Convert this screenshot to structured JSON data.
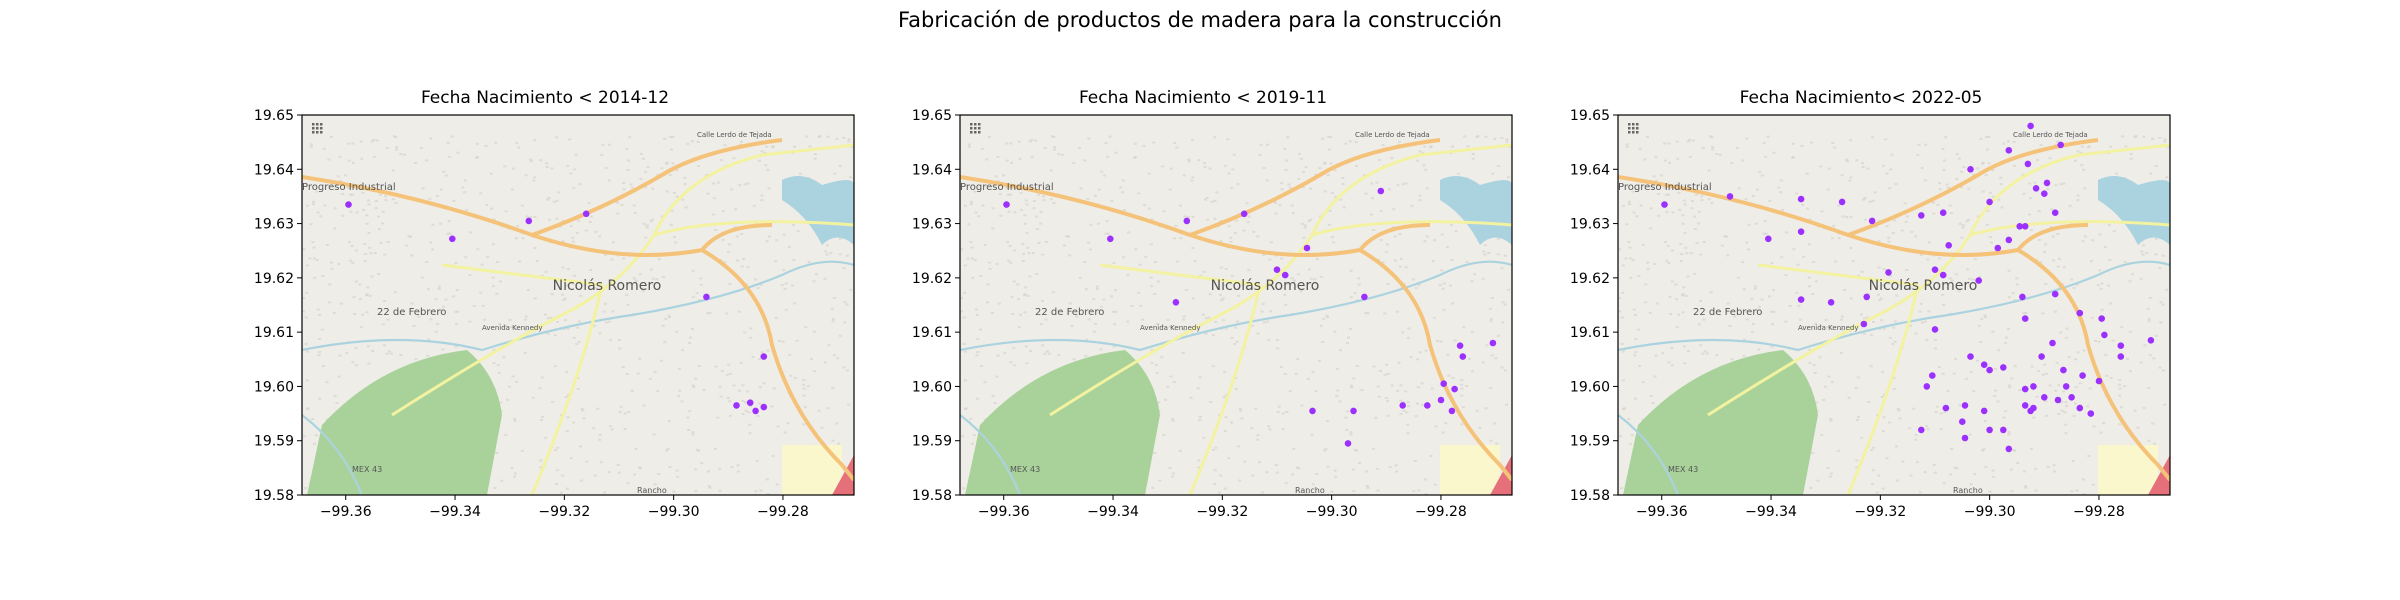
{
  "title": "Fabricación de productos de madera para la construcción",
  "map_labels": {
    "town": "Nicolás Romero",
    "progreso": "Progreso Industrial",
    "febrero": "22 de Febrero",
    "avenida": "Avenida Kennedy",
    "calle": "Calle Lerdo de Tejada",
    "mex": "MEX 43",
    "rancho": "Rancho"
  },
  "colors": {
    "points": "#9b30ff",
    "park": "#a9d29b",
    "water": "#aad3df",
    "road_major": "#f5c27a",
    "road_secondary": "#f2f2a0",
    "land": "#efede8"
  },
  "chart_data": [
    {
      "type": "scatter",
      "title": "Fecha Nacimiento < 2014-12",
      "xlim": [
        -99.368,
        -99.267
      ],
      "ylim": [
        19.58,
        19.65
      ],
      "xticks": [
        "−99.36",
        "−99.34",
        "−99.32",
        "−99.30",
        "−99.28"
      ],
      "yticks": [
        "19.65",
        "19.64",
        "19.63",
        "19.62",
        "19.61",
        "19.60",
        "19.59",
        "19.58"
      ],
      "points": [
        [
          -99.3595,
          19.6335
        ],
        [
          -99.3405,
          19.6272
        ],
        [
          -99.3265,
          19.6305
        ],
        [
          -99.316,
          19.6318
        ],
        [
          -99.294,
          19.6165
        ],
        [
          -99.2835,
          19.6055
        ],
        [
          -99.286,
          19.597
        ],
        [
          -99.2885,
          19.5965
        ],
        [
          -99.285,
          19.5955
        ],
        [
          -99.2835,
          19.5962
        ]
      ]
    },
    {
      "type": "scatter",
      "title": "Fecha Nacimiento < 2019-11",
      "xlim": [
        -99.368,
        -99.267
      ],
      "ylim": [
        19.58,
        19.65
      ],
      "xticks": [
        "−99.36",
        "−99.34",
        "−99.32",
        "−99.30",
        "−99.28"
      ],
      "yticks": [
        "19.65",
        "19.64",
        "19.63",
        "19.62",
        "19.61",
        "19.60",
        "19.59",
        "19.58"
      ],
      "points": [
        [
          -99.3595,
          19.6335
        ],
        [
          -99.3405,
          19.6272
        ],
        [
          -99.3265,
          19.6305
        ],
        [
          -99.316,
          19.6318
        ],
        [
          -99.3045,
          19.6255
        ],
        [
          -99.291,
          19.636
        ],
        [
          -99.31,
          19.6215
        ],
        [
          -99.3085,
          19.6205
        ],
        [
          -99.3285,
          19.6155
        ],
        [
          -99.294,
          19.6165
        ],
        [
          -99.2765,
          19.6075
        ],
        [
          -99.276,
          19.6055
        ],
        [
          -99.2705,
          19.608
        ],
        [
          -99.2795,
          19.6005
        ],
        [
          -99.2775,
          19.5995
        ],
        [
          -99.28,
          19.5975
        ],
        [
          -99.2825,
          19.5965
        ],
        [
          -99.287,
          19.5965
        ],
        [
          -99.278,
          19.5955
        ],
        [
          -99.3035,
          19.5955
        ],
        [
          -99.296,
          19.5955
        ],
        [
          -99.297,
          19.5895
        ]
      ]
    },
    {
      "type": "scatter",
      "title": "Fecha Nacimiento< 2022-05",
      "xlim": [
        -99.368,
        -99.267
      ],
      "ylim": [
        19.58,
        19.65
      ],
      "xticks": [
        "−99.36",
        "−99.34",
        "−99.32",
        "−99.30",
        "−99.28"
      ],
      "yticks": [
        "19.65",
        "19.64",
        "19.63",
        "19.62",
        "19.61",
        "19.60",
        "19.59",
        "19.58"
      ],
      "points": [
        [
          -99.3595,
          19.6335
        ],
        [
          -99.3475,
          19.635
        ],
        [
          -99.3405,
          19.6272
        ],
        [
          -99.3345,
          19.6285
        ],
        [
          -99.3345,
          19.6345
        ],
        [
          -99.327,
          19.634
        ],
        [
          -99.3215,
          19.6305
        ],
        [
          -99.3125,
          19.6315
        ],
        [
          -99.3085,
          19.632
        ],
        [
          -99.3075,
          19.626
        ],
        [
          -99.3,
          19.634
        ],
        [
          -99.2985,
          19.6255
        ],
        [
          -99.2965,
          19.627
        ],
        [
          -99.2945,
          19.6295
        ],
        [
          -99.2935,
          19.6295
        ],
        [
          -99.2915,
          19.6365
        ],
        [
          -99.288,
          19.632
        ],
        [
          -99.293,
          19.641
        ],
        [
          -99.2895,
          19.6375
        ],
        [
          -99.29,
          19.6355
        ],
        [
          -99.2925,
          19.648
        ],
        [
          -99.287,
          19.6445
        ],
        [
          -99.2965,
          19.6435
        ],
        [
          -99.3035,
          19.64
        ],
        [
          -99.329,
          19.6155
        ],
        [
          -99.3345,
          19.616
        ],
        [
          -99.3225,
          19.6165
        ],
        [
          -99.3185,
          19.621
        ],
        [
          -99.31,
          19.6215
        ],
        [
          -99.3085,
          19.6205
        ],
        [
          -99.302,
          19.6195
        ],
        [
          -99.294,
          19.6165
        ],
        [
          -99.288,
          19.617
        ],
        [
          -99.2935,
          19.6125
        ],
        [
          -99.2885,
          19.608
        ],
        [
          -99.2835,
          19.6135
        ],
        [
          -99.2795,
          19.6125
        ],
        [
          -99.279,
          19.6095
        ],
        [
          -99.276,
          19.6075
        ],
        [
          -99.2705,
          19.6085
        ],
        [
          -99.276,
          19.6055
        ],
        [
          -99.31,
          19.6105
        ],
        [
          -99.323,
          19.6115
        ],
        [
          -99.3035,
          19.6055
        ],
        [
          -99.301,
          19.604
        ],
        [
          -99.3,
          19.603
        ],
        [
          -99.2975,
          19.6035
        ],
        [
          -99.2905,
          19.6055
        ],
        [
          -99.2865,
          19.603
        ],
        [
          -99.283,
          19.602
        ],
        [
          -99.28,
          19.601
        ],
        [
          -99.286,
          19.6
        ],
        [
          -99.292,
          19.6
        ],
        [
          -99.2935,
          19.5995
        ],
        [
          -99.29,
          19.598
        ],
        [
          -99.2875,
          19.5975
        ],
        [
          -99.285,
          19.598
        ],
        [
          -99.2835,
          19.596
        ],
        [
          -99.2815,
          19.595
        ],
        [
          -99.2925,
          19.5955
        ],
        [
          -99.2935,
          19.5965
        ],
        [
          -99.292,
          19.596
        ],
        [
          -99.301,
          19.5955
        ],
        [
          -99.305,
          19.5935
        ],
        [
          -99.308,
          19.596
        ],
        [
          -99.3045,
          19.5905
        ],
        [
          -99.3,
          19.592
        ],
        [
          -99.2975,
          19.592
        ],
        [
          -99.2965,
          19.5885
        ],
        [
          -99.3115,
          19.6
        ],
        [
          -99.3045,
          19.5965
        ],
        [
          -99.3125,
          19.592
        ],
        [
          -99.3105,
          19.602
        ]
      ]
    }
  ]
}
